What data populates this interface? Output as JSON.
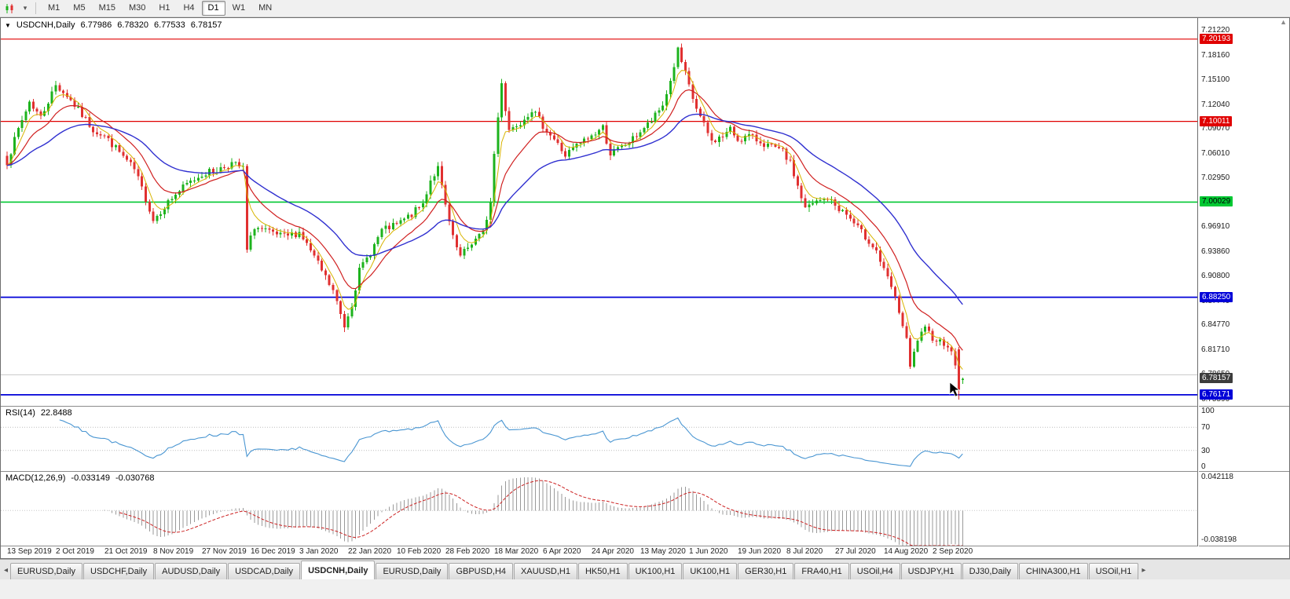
{
  "icons": {
    "collapse": "▼",
    "scroll_up": "▲",
    "tab_left": "◂",
    "tab_right": "▸",
    "tf_dropdown": "▾"
  },
  "toolbar": {
    "timeframes": [
      "M1",
      "M5",
      "M15",
      "M30",
      "H1",
      "H4",
      "D1",
      "W1",
      "MN"
    ],
    "active_timeframe": "D1"
  },
  "chart": {
    "symbol_period": "USDCNH,Daily",
    "open": "6.77986",
    "high": "6.78320",
    "low": "6.77533",
    "close": "6.78157"
  },
  "price_axis": {
    "ticks": [
      "7.21220",
      "7.18160",
      "7.15100",
      "7.12040",
      "7.09070",
      "7.06010",
      "7.02950",
      "6.99890",
      "6.96910",
      "6.93860",
      "6.90800",
      "6.87740",
      "6.84770",
      "6.81710",
      "6.78650",
      "6.75590"
    ],
    "tags": [
      {
        "label": "7.20193",
        "price": 7.20193,
        "bg": "#e00000",
        "fg": "#ffffff",
        "name": "resistance-tag-7-20193"
      },
      {
        "label": "7.10011",
        "price": 7.10011,
        "bg": "#e00000",
        "fg": "#ffffff",
        "name": "resistance-tag-7-10011"
      },
      {
        "label": "7.00029",
        "price": 7.00029,
        "bg": "#00c832",
        "fg": "#000000",
        "name": "level-tag-7-00029"
      },
      {
        "label": "6.88250",
        "price": 6.8825,
        "bg": "#0000d8",
        "fg": "#ffffff",
        "name": "support-tag-6-88250"
      },
      {
        "label": "6.78157",
        "price": 6.78157,
        "bg": "#3c3c3c",
        "fg": "#ffffff",
        "name": "current-price-tag"
      },
      {
        "label": "6.76171",
        "price": 6.76171,
        "bg": "#0000d8",
        "fg": "#ffffff",
        "name": "support-tag-6-76171"
      }
    ]
  },
  "x_axis": {
    "labels": [
      "13 Sep 2019",
      "2 Oct 2019",
      "21 Oct 2019",
      "8 Nov 2019",
      "27 Nov 2019",
      "16 Dec 2019",
      "3 Jan 2020",
      "22 Jan 2020",
      "10 Feb 2020",
      "28 Feb 2020",
      "18 Mar 2020",
      "6 Apr 2020",
      "24 Apr 2020",
      "13 May 2020",
      "1 Jun 2020",
      "19 Jun 2020",
      "8 Jul 2020",
      "27 Jul 2020",
      "14 Aug 2020",
      "2 Sep 2020"
    ]
  },
  "rsi": {
    "name": "RSI(14)",
    "value": "22.8488",
    "axis": [
      "100",
      "70",
      "30",
      "0"
    ],
    "guides": [
      70,
      30
    ],
    "line_color": "#4a96d2"
  },
  "macd": {
    "name": "MACD(12,26,9)",
    "main_value": "-0.033149",
    "signal_value": "-0.030768",
    "axis_top": "0.042118",
    "axis_bottom": "-0.038198",
    "hist_color": "#9a9a9a",
    "signal_color": "#cc2222"
  },
  "tabs": [
    "EURUSD,Daily",
    "USDCHF,Daily",
    "AUDUSD,Daily",
    "USDCAD,Daily",
    "USDCNH,Daily",
    "EURUSD,Daily",
    "GBPUSD,H4",
    "XAUUSD,H1",
    "HK50,H1",
    "UK100,H1",
    "UK100,H1",
    "GER30,H1",
    "FRA40,H1",
    "USOil,H4",
    "USDJPY,H1",
    "DJ30,Daily",
    "CHINA300,H1",
    "USOil,H1"
  ],
  "active_tab_index": 4,
  "colors": {
    "up": "#1db31d",
    "down": "#e03030",
    "ma_fast": "#d8b400",
    "ma_mid": "#d02020",
    "ma_slow": "#3030d0"
  },
  "chart_data": {
    "type": "candlestick",
    "symbol": "USDCNH",
    "period": "Daily",
    "bars": 256,
    "price_range": {
      "top": 7.228,
      "bottom": 6.748
    },
    "horizontal_lines": [
      {
        "price": 7.20193,
        "color": "#e00000",
        "width": 1.2
      },
      {
        "price": 7.10011,
        "color": "#e00000",
        "width": 1.2
      },
      {
        "price": 7.00029,
        "color": "#00c832",
        "width": 1.6
      },
      {
        "price": 6.8825,
        "color": "#0000d8",
        "width": 1.8
      },
      {
        "price": 6.7865,
        "color": "#c8c8c8",
        "width": 1
      },
      {
        "price": 6.76171,
        "color": "#0000d8",
        "width": 1.8
      }
    ],
    "close_waypoints": [
      [
        0,
        7.05
      ],
      [
        3,
        7.09
      ],
      [
        6,
        7.125
      ],
      [
        9,
        7.105
      ],
      [
        13,
        7.145
      ],
      [
        16,
        7.132
      ],
      [
        20,
        7.108
      ],
      [
        23,
        7.09
      ],
      [
        26,
        7.082
      ],
      [
        30,
        7.062
      ],
      [
        34,
        7.04
      ],
      [
        37,
        7.005
      ],
      [
        39,
        6.978
      ],
      [
        42,
        6.995
      ],
      [
        45,
        7.01
      ],
      [
        48,
        7.022
      ],
      [
        52,
        7.035
      ],
      [
        56,
        7.04
      ],
      [
        60,
        7.048
      ],
      [
        63,
        7.042
      ],
      [
        64,
        6.94
      ],
      [
        66,
        6.97
      ],
      [
        70,
        6.962
      ],
      [
        74,
        6.957
      ],
      [
        78,
        6.963
      ],
      [
        81,
        6.94
      ],
      [
        84,
        6.915
      ],
      [
        87,
        6.89
      ],
      [
        90,
        6.847
      ],
      [
        92,
        6.875
      ],
      [
        94,
        6.915
      ],
      [
        97,
        6.938
      ],
      [
        100,
        6.965
      ],
      [
        104,
        6.972
      ],
      [
        108,
        6.985
      ],
      [
        111,
        6.998
      ],
      [
        113,
        7.028
      ],
      [
        115,
        7.042
      ],
      [
        117,
        6.995
      ],
      [
        119,
        6.955
      ],
      [
        121,
        6.932
      ],
      [
        124,
        6.95
      ],
      [
        127,
        6.962
      ],
      [
        129,
        7.0
      ],
      [
        130,
        7.06
      ],
      [
        131,
        7.105
      ],
      [
        132,
        7.15
      ],
      [
        133,
        7.115
      ],
      [
        134,
        7.09
      ],
      [
        137,
        7.1
      ],
      [
        140,
        7.115
      ],
      [
        143,
        7.095
      ],
      [
        146,
        7.078
      ],
      [
        149,
        7.058
      ],
      [
        152,
        7.07
      ],
      [
        156,
        7.082
      ],
      [
        159,
        7.093
      ],
      [
        161,
        7.06
      ],
      [
        164,
        7.068
      ],
      [
        167,
        7.078
      ],
      [
        169,
        7.088
      ],
      [
        172,
        7.1
      ],
      [
        175,
        7.12
      ],
      [
        177,
        7.15
      ],
      [
        179,
        7.188
      ],
      [
        181,
        7.158
      ],
      [
        183,
        7.128
      ],
      [
        185,
        7.105
      ],
      [
        188,
        7.075
      ],
      [
        191,
        7.082
      ],
      [
        193,
        7.09
      ],
      [
        195,
        7.078
      ],
      [
        198,
        7.082
      ],
      [
        201,
        7.075
      ],
      [
        204,
        7.068
      ],
      [
        207,
        7.062
      ],
      [
        209,
        7.048
      ],
      [
        211,
        7.02
      ],
      [
        213,
        6.992
      ],
      [
        216,
        7.0
      ],
      [
        219,
        7.005
      ],
      [
        221,
        6.996
      ],
      [
        224,
        6.985
      ],
      [
        227,
        6.968
      ],
      [
        230,
        6.952
      ],
      [
        232,
        6.94
      ],
      [
        234,
        6.915
      ],
      [
        236,
        6.895
      ],
      [
        238,
        6.865
      ],
      [
        240,
        6.828
      ],
      [
        241,
        6.795
      ],
      [
        243,
        6.83
      ],
      [
        245,
        6.842
      ],
      [
        247,
        6.833
      ],
      [
        249,
        6.828
      ],
      [
        251,
        6.824
      ],
      [
        253,
        6.8
      ],
      [
        255,
        6.782
      ]
    ],
    "final_bars": [
      {
        "open": 6.818,
        "high": 6.821,
        "low": 6.756,
        "close": 6.768
      },
      {
        "open": 6.77986,
        "high": 6.7832,
        "low": 6.77533,
        "close": 6.78157
      }
    ],
    "moving_averages": [
      {
        "period": 5,
        "color": "#d8b400",
        "width": 1
      },
      {
        "period": 13,
        "color": "#d02020",
        "width": 1.2
      },
      {
        "period": 34,
        "color": "#3030d0",
        "width": 1.4
      }
    ],
    "indicators": {
      "rsi": {
        "period": 14,
        "last": 22.8488
      },
      "macd": {
        "fast": 12,
        "slow": 26,
        "signal": 9,
        "last_main": -0.033149,
        "last_signal": -0.030768,
        "scale_top": 0.042118,
        "scale_bottom": -0.038198
      }
    }
  }
}
